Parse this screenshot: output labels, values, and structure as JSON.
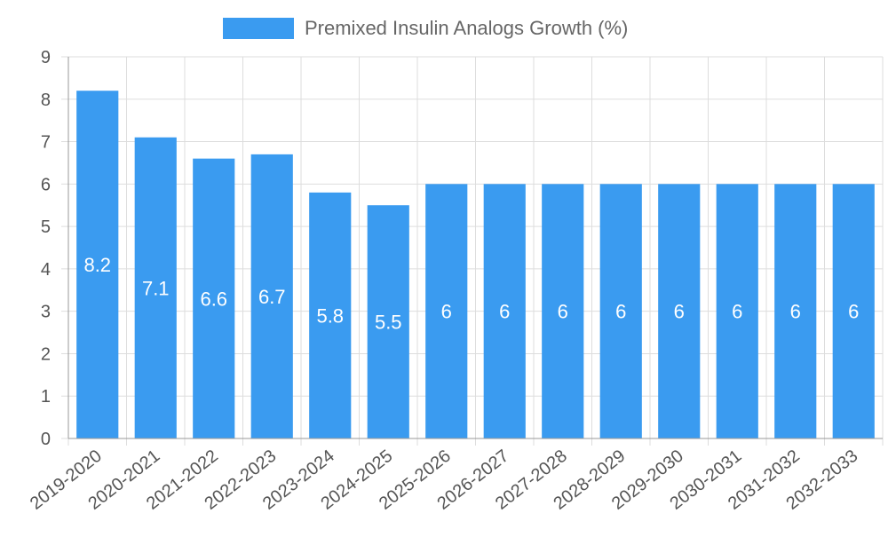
{
  "chart_data": {
    "type": "bar",
    "categories": [
      "2019-2020",
      "2020-2021",
      "2021-2022",
      "2022-2023",
      "2023-2024",
      "2024-2025",
      "2025-2026",
      "2026-2027",
      "2027-2028",
      "2028-2029",
      "2029-2030",
      "2030-2031",
      "2031-2032",
      "2032-2033"
    ],
    "series": [
      {
        "name": "Premixed Insulin Analogs Growth (%)",
        "values": [
          8.2,
          7.1,
          6.6,
          6.7,
          5.8,
          5.5,
          6,
          6,
          6,
          6,
          6,
          6,
          6,
          6
        ],
        "color": "#3a9bf0"
      }
    ],
    "ylim": [
      0,
      9
    ],
    "yticks": [
      0,
      1,
      2,
      3,
      4,
      5,
      6,
      7,
      8,
      9
    ],
    "grid": true,
    "legend_position": "top-center",
    "data_labels": true,
    "data_label_color": "#ffffff",
    "axis_text_color": "#555555",
    "grid_color": "#dddddd"
  }
}
